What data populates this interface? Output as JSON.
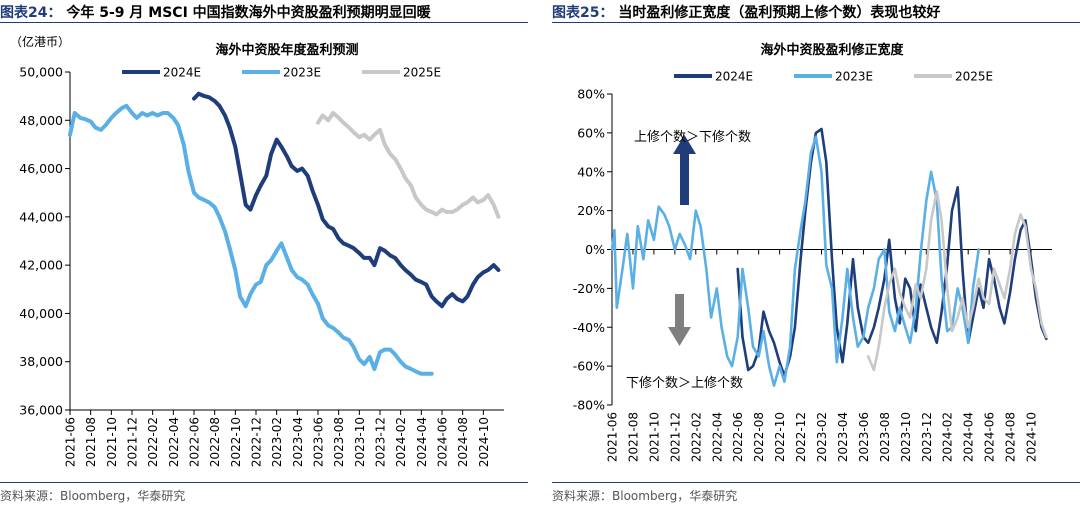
{
  "left": {
    "figure_label": "图表24：",
    "figure_title": "今年 5-9 月 MSCI 中国指数海外中资股盈利预期明显回暖",
    "source": "资料来源：Bloomberg，华泰研究"
  },
  "right": {
    "figure_label": "图表25：",
    "figure_title": "当时盈利修正宽度（盈利预期上修个数）表现也较好",
    "source": "资料来源：Bloomberg，华泰研究"
  },
  "chart_data": [
    {
      "type": "line",
      "title": "海外中资股年度盈利预测",
      "unit_label": "（亿港币）",
      "ylim": [
        36000,
        50000
      ],
      "yticks": [
        36000,
        38000,
        40000,
        42000,
        44000,
        46000,
        48000,
        50000
      ],
      "ytick_labels": [
        "36,000",
        "38,000",
        "40,000",
        "42,000",
        "44,000",
        "46,000",
        "48,000",
        "50,000"
      ],
      "xlim": [
        "2021-06",
        "2024-12"
      ],
      "xtick_labels": [
        "2021-06",
        "2021-08",
        "2021-10",
        "2021-12",
        "2022-02",
        "2022-04",
        "2022-06",
        "2022-08",
        "2022-10",
        "2022-12",
        "2023-02",
        "2023-04",
        "2023-06",
        "2023-08",
        "2023-10",
        "2023-12",
        "2024-02",
        "2024-04",
        "2024-06",
        "2024-08",
        "2024-10"
      ],
      "legend_position": "top",
      "grid": false,
      "series": [
        {
          "name": "2024E",
          "color": "#1f3d7a",
          "x": [
            "2022-06-01",
            "2022-06-15",
            "2022-07-01",
            "2022-07-15",
            "2022-08-01",
            "2022-08-15",
            "2022-09-01",
            "2022-09-15",
            "2022-10-01",
            "2022-10-15",
            "2022-11-01",
            "2022-11-15",
            "2022-12-01",
            "2022-12-15",
            "2023-01-01",
            "2023-01-15",
            "2023-02-01",
            "2023-02-15",
            "2023-03-01",
            "2023-03-15",
            "2023-04-01",
            "2023-04-15",
            "2023-05-01",
            "2023-05-15",
            "2023-06-01",
            "2023-06-15",
            "2023-07-01",
            "2023-07-15",
            "2023-08-01",
            "2023-08-15",
            "2023-09-01",
            "2023-09-15",
            "2023-10-01",
            "2023-10-15",
            "2023-11-01",
            "2023-11-15",
            "2023-12-01",
            "2023-12-15",
            "2024-01-01",
            "2024-01-15",
            "2024-02-01",
            "2024-02-15",
            "2024-03-01",
            "2024-03-15",
            "2024-04-01",
            "2024-04-15",
            "2024-05-01",
            "2024-05-15",
            "2024-06-01",
            "2024-06-15",
            "2024-07-01",
            "2024-07-15",
            "2024-08-01",
            "2024-08-15",
            "2024-09-01",
            "2024-09-15",
            "2024-10-01",
            "2024-10-15",
            "2024-11-01",
            "2024-11-15"
          ],
          "values": [
            48900,
            49100,
            49000,
            48950,
            48800,
            48600,
            48200,
            47700,
            46900,
            45800,
            44500,
            44300,
            44900,
            45300,
            45700,
            46600,
            47200,
            46900,
            46500,
            46100,
            45900,
            46000,
            45700,
            45100,
            44500,
            43900,
            43600,
            43500,
            43100,
            42900,
            42800,
            42700,
            42500,
            42300,
            42300,
            42000,
            42700,
            42600,
            42400,
            42300,
            42000,
            41800,
            41600,
            41400,
            41300,
            41200,
            40700,
            40500,
            40300,
            40600,
            40800,
            40600,
            40500,
            40700,
            41200,
            41500,
            41700,
            41800,
            42000,
            41800
          ]
        },
        {
          "name": "2023E",
          "color": "#5ab0e6",
          "x": [
            "2021-06-01",
            "2021-06-15",
            "2021-07-01",
            "2021-07-15",
            "2021-08-01",
            "2021-08-15",
            "2021-09-01",
            "2021-09-15",
            "2021-10-01",
            "2021-10-15",
            "2021-11-01",
            "2021-11-15",
            "2021-12-01",
            "2021-12-15",
            "2022-01-01",
            "2022-01-15",
            "2022-02-01",
            "2022-02-15",
            "2022-03-01",
            "2022-03-15",
            "2022-04-01",
            "2022-04-15",
            "2022-05-01",
            "2022-05-15",
            "2022-06-01",
            "2022-06-15",
            "2022-07-01",
            "2022-07-15",
            "2022-08-01",
            "2022-08-15",
            "2022-09-01",
            "2022-09-15",
            "2022-10-01",
            "2022-10-15",
            "2022-11-01",
            "2022-11-15",
            "2022-12-01",
            "2022-12-15",
            "2023-01-01",
            "2023-01-15",
            "2023-02-01",
            "2023-02-15",
            "2023-03-01",
            "2023-03-15",
            "2023-04-01",
            "2023-04-15",
            "2023-05-01",
            "2023-05-15",
            "2023-06-01",
            "2023-06-15",
            "2023-07-01",
            "2023-07-15",
            "2023-08-01",
            "2023-08-15",
            "2023-09-01",
            "2023-09-15",
            "2023-10-01",
            "2023-10-15",
            "2023-11-01",
            "2023-11-15",
            "2023-12-01",
            "2023-12-15",
            "2024-01-01",
            "2024-01-15",
            "2024-02-01",
            "2024-02-15",
            "2024-03-01",
            "2024-03-15",
            "2024-04-01",
            "2024-04-15",
            "2024-05-01"
          ],
          "values": [
            47400,
            48300,
            48100,
            48050,
            47950,
            47700,
            47600,
            47800,
            48100,
            48300,
            48500,
            48600,
            48300,
            48100,
            48300,
            48200,
            48300,
            48200,
            48300,
            48300,
            48100,
            47800,
            47000,
            45900,
            45000,
            44800,
            44700,
            44600,
            44400,
            44000,
            43400,
            42700,
            41800,
            40700,
            40300,
            40800,
            41200,
            41300,
            42000,
            42200,
            42600,
            42900,
            42300,
            41800,
            41500,
            41400,
            41200,
            40800,
            40400,
            39800,
            39500,
            39400,
            39200,
            39000,
            38900,
            38600,
            38100,
            37900,
            38200,
            37700,
            38400,
            38500,
            38500,
            38300,
            38000,
            37800,
            37700,
            37600,
            37500,
            37500,
            37500
          ]
        },
        {
          "name": "2025E",
          "color": "#c8c8c8",
          "x": [
            "2023-06-01",
            "2023-06-15",
            "2023-07-01",
            "2023-07-15",
            "2023-08-01",
            "2023-08-15",
            "2023-09-01",
            "2023-09-15",
            "2023-10-01",
            "2023-10-15",
            "2023-11-01",
            "2023-11-15",
            "2023-12-01",
            "2023-12-15",
            "2024-01-01",
            "2024-01-15",
            "2024-02-01",
            "2024-02-15",
            "2024-03-01",
            "2024-03-15",
            "2024-04-01",
            "2024-04-15",
            "2024-05-01",
            "2024-05-15",
            "2024-06-01",
            "2024-06-15",
            "2024-07-01",
            "2024-07-15",
            "2024-08-01",
            "2024-08-15",
            "2024-09-01",
            "2024-09-15",
            "2024-10-01",
            "2024-10-15",
            "2024-11-01",
            "2024-11-15"
          ],
          "values": [
            47900,
            48200,
            48000,
            48300,
            48100,
            47900,
            47700,
            47500,
            47300,
            47400,
            47200,
            47400,
            47600,
            47000,
            46600,
            46400,
            46000,
            45600,
            45300,
            44800,
            44500,
            44300,
            44200,
            44100,
            44300,
            44200,
            44200,
            44300,
            44500,
            44600,
            44800,
            44600,
            44700,
            44900,
            44500,
            44000
          ]
        }
      ]
    },
    {
      "type": "line",
      "title": "海外中资股盈利修正宽度",
      "ylim": [
        -80,
        80
      ],
      "yticks": [
        -80,
        -60,
        -40,
        -20,
        0,
        20,
        40,
        60,
        80
      ],
      "ytick_labels": [
        "-80%",
        "-60%",
        "-40%",
        "-20%",
        "0%",
        "20%",
        "40%",
        "60%",
        "80%"
      ],
      "xlim": [
        "2021-06",
        "2024-12"
      ],
      "xtick_labels": [
        "2021-06",
        "2021-08",
        "2021-10",
        "2021-12",
        "2022-02",
        "2022-04",
        "2022-06",
        "2022-08",
        "2022-10",
        "2022-12",
        "2023-02",
        "2023-04",
        "2023-06",
        "2023-08",
        "2023-10",
        "2023-12",
        "2024-02",
        "2024-04",
        "2024-06",
        "2024-08",
        "2024-10"
      ],
      "legend_position": "top",
      "grid": false,
      "annotations": [
        {
          "text": "上修个数＞下修个数",
          "arrow": "up",
          "arrow_color": "#1f3d7a"
        },
        {
          "text": "下修个数＞上修个数",
          "arrow": "down",
          "arrow_color": "#7f7f7f"
        }
      ],
      "series": [
        {
          "name": "2024E",
          "color": "#1f3d7a",
          "x": [
            "2022-06-01",
            "2022-06-15",
            "2022-07-01",
            "2022-07-15",
            "2022-08-01",
            "2022-08-15",
            "2022-09-01",
            "2022-09-15",
            "2022-10-01",
            "2022-10-15",
            "2022-11-01",
            "2022-11-15",
            "2022-12-01",
            "2022-12-15",
            "2023-01-01",
            "2023-01-15",
            "2023-02-01",
            "2023-02-15",
            "2023-03-01",
            "2023-03-15",
            "2023-04-01",
            "2023-04-15",
            "2023-05-01",
            "2023-05-15",
            "2023-06-01",
            "2023-06-15",
            "2023-07-01",
            "2023-07-15",
            "2023-08-01",
            "2023-08-15",
            "2023-09-01",
            "2023-09-15",
            "2023-10-01",
            "2023-10-15",
            "2023-11-01",
            "2023-11-15",
            "2023-12-01",
            "2023-12-15",
            "2024-01-01",
            "2024-01-15",
            "2024-02-01",
            "2024-02-15",
            "2024-03-01",
            "2024-03-15",
            "2024-04-01",
            "2024-04-15",
            "2024-05-01",
            "2024-05-15",
            "2024-06-01",
            "2024-06-15",
            "2024-07-01",
            "2024-07-15",
            "2024-08-01",
            "2024-08-15",
            "2024-09-01",
            "2024-09-15",
            "2024-10-01",
            "2024-10-15",
            "2024-11-01",
            "2024-11-15"
          ],
          "values": [
            -10,
            -45,
            -62,
            -60,
            -52,
            -32,
            -42,
            -48,
            -58,
            -65,
            -55,
            -40,
            -5,
            20,
            45,
            60,
            62,
            45,
            -5,
            -40,
            -58,
            -38,
            -5,
            -30,
            -45,
            -48,
            -40,
            -30,
            -15,
            5,
            -25,
            -38,
            -15,
            -20,
            -42,
            -18,
            -30,
            -40,
            -48,
            -32,
            -8,
            20,
            32,
            -10,
            -48,
            -35,
            -20,
            -30,
            -5,
            -15,
            -30,
            -38,
            -22,
            -5,
            10,
            15,
            -5,
            -25,
            -40,
            -46
          ]
        },
        {
          "name": "2023E",
          "color": "#5ab0e6",
          "x": [
            "2021-06-01",
            "2021-06-08",
            "2021-06-15",
            "2021-07-01",
            "2021-07-15",
            "2021-08-01",
            "2021-08-15",
            "2021-09-01",
            "2021-09-15",
            "2021-10-01",
            "2021-10-15",
            "2021-11-01",
            "2021-11-15",
            "2021-12-01",
            "2021-12-15",
            "2022-01-01",
            "2022-01-15",
            "2022-02-01",
            "2022-02-15",
            "2022-03-01",
            "2022-03-15",
            "2022-04-01",
            "2022-04-15",
            "2022-05-01",
            "2022-05-15",
            "2022-06-01",
            "2022-06-15",
            "2022-07-01",
            "2022-07-15",
            "2022-08-01",
            "2022-08-15",
            "2022-09-01",
            "2022-09-15",
            "2022-10-01",
            "2022-10-15",
            "2022-11-01",
            "2022-11-15",
            "2022-12-01",
            "2022-12-15",
            "2023-01-01",
            "2023-01-15",
            "2023-02-01",
            "2023-02-15",
            "2023-03-01",
            "2023-03-15",
            "2023-04-01",
            "2023-04-15",
            "2023-05-01",
            "2023-05-15",
            "2023-06-01",
            "2023-06-15",
            "2023-07-01",
            "2023-07-15",
            "2023-08-01",
            "2023-08-15",
            "2023-09-01",
            "2023-09-15",
            "2023-10-01",
            "2023-10-15",
            "2023-11-01",
            "2023-11-15",
            "2023-12-01",
            "2023-12-15",
            "2024-01-01",
            "2024-01-15",
            "2024-02-01",
            "2024-02-15",
            "2024-03-01",
            "2024-03-15",
            "2024-04-01",
            "2024-04-15",
            "2024-05-01"
          ],
          "values": [
            0,
            10,
            -30,
            -10,
            8,
            -20,
            12,
            -5,
            15,
            5,
            22,
            18,
            12,
            0,
            8,
            2,
            -5,
            20,
            12,
            -10,
            -35,
            -20,
            -40,
            -55,
            -60,
            -45,
            -10,
            -30,
            -50,
            -55,
            -42,
            -60,
            -70,
            -60,
            -68,
            -50,
            -10,
            10,
            25,
            50,
            58,
            40,
            -8,
            -20,
            -58,
            -35,
            -10,
            -35,
            -50,
            -45,
            -30,
            -20,
            -5,
            0,
            -32,
            -42,
            -30,
            -40,
            -48,
            -30,
            -2,
            25,
            40,
            25,
            -15,
            -42,
            -40,
            -20,
            -30,
            -48,
            -20,
            0
          ]
        },
        {
          "name": "2025E",
          "color": "#c8c8c8",
          "x": [
            "2023-06-15",
            "2023-07-01",
            "2023-07-15",
            "2023-08-01",
            "2023-08-15",
            "2023-09-01",
            "2023-09-15",
            "2023-10-01",
            "2023-10-15",
            "2023-11-01",
            "2023-11-15",
            "2023-12-01",
            "2023-12-15",
            "2024-01-01",
            "2024-01-15",
            "2024-02-01",
            "2024-02-15",
            "2024-03-01",
            "2024-03-15",
            "2024-04-01",
            "2024-04-15",
            "2024-05-01",
            "2024-05-15",
            "2024-06-01",
            "2024-06-15",
            "2024-07-01",
            "2024-07-15",
            "2024-08-01",
            "2024-08-15",
            "2024-09-01",
            "2024-09-15",
            "2024-10-01",
            "2024-10-15",
            "2024-11-01",
            "2024-11-15"
          ],
          "values": [
            -55,
            -62,
            -50,
            -30,
            -18,
            -10,
            -22,
            -30,
            -35,
            -18,
            -25,
            -10,
            15,
            30,
            15,
            -20,
            -42,
            -35,
            -25,
            -40,
            -30,
            -15,
            -25,
            -28,
            -10,
            -18,
            -25,
            -10,
            8,
            18,
            12,
            -10,
            -20,
            -38,
            -45
          ]
        }
      ]
    }
  ]
}
